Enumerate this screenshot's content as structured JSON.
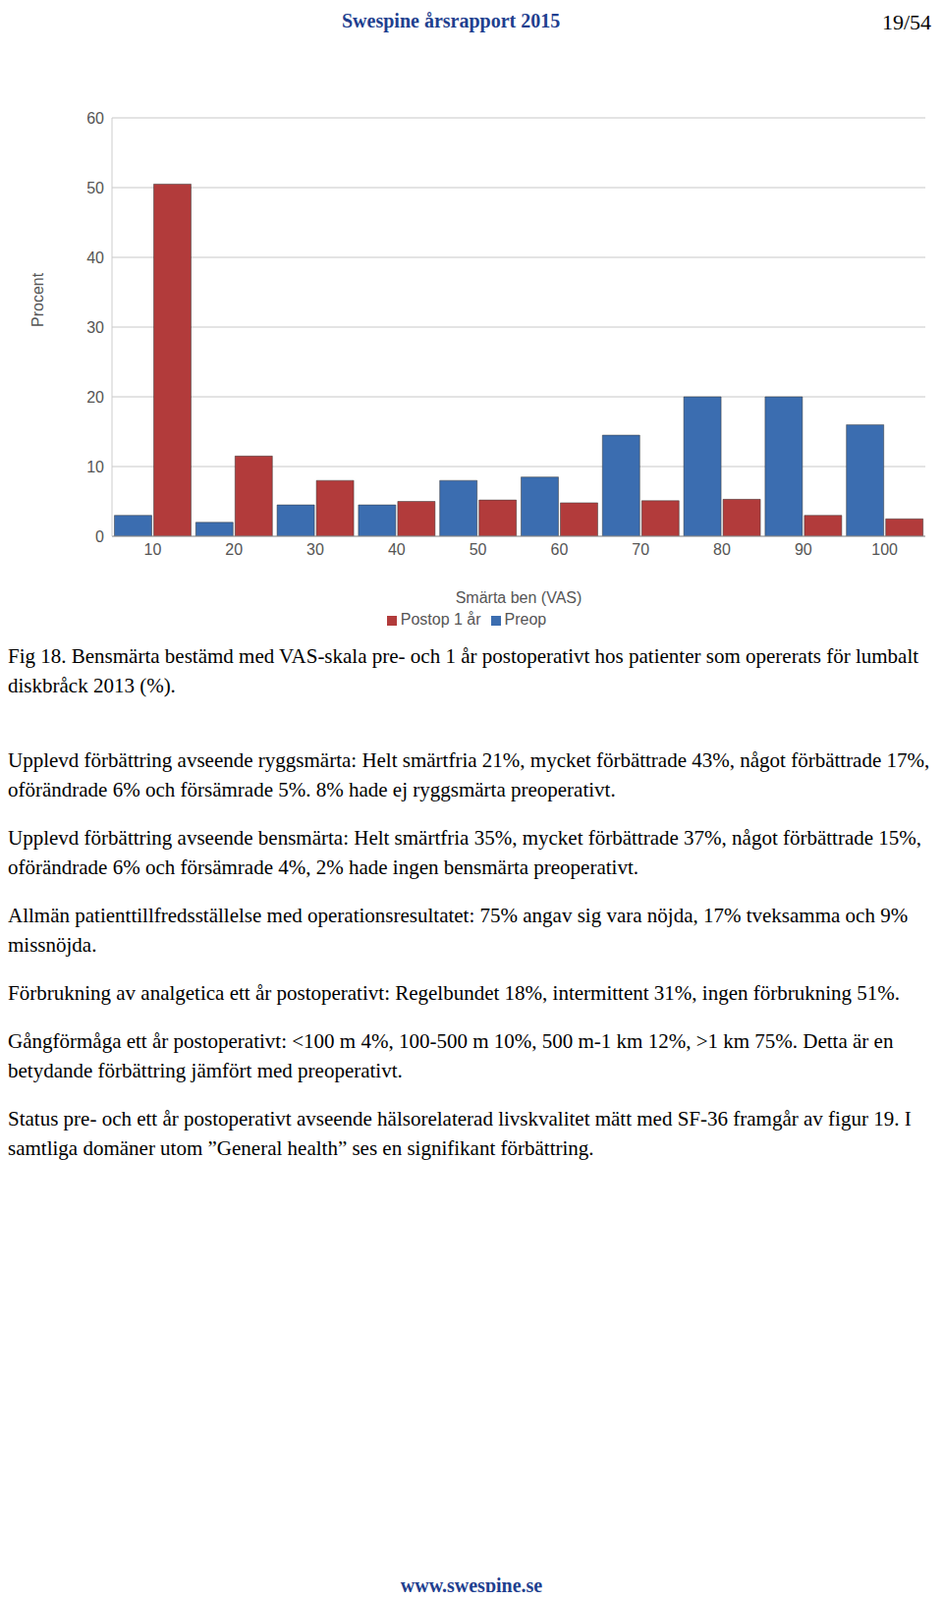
{
  "header": {
    "title": "Swespine årsrapport 2015",
    "page": "19/54"
  },
  "chart_data": {
    "type": "bar",
    "x_label": "Smärta ben (VAS)",
    "y_label": "Procent",
    "categories": [
      "10",
      "20",
      "30",
      "40",
      "50",
      "60",
      "70",
      "80",
      "90",
      "100"
    ],
    "series": [
      {
        "name": "Preop",
        "color": "#3b6db0",
        "values": [
          3,
          2,
          4.5,
          4.5,
          8,
          8.5,
          14.5,
          20,
          20,
          16
        ]
      },
      {
        "name": "Postop 1 år",
        "color": "#b23b3b",
        "values": [
          50.5,
          11.5,
          8,
          5,
          5.2,
          4.8,
          5.1,
          5.3,
          3,
          2.5
        ]
      }
    ],
    "ylim": [
      0,
      60
    ],
    "yticks": [
      0,
      10,
      20,
      30,
      40,
      50,
      60
    ],
    "grid": true,
    "legend": "bottom"
  },
  "caption": "Fig 18. Bensmärta bestämd med VAS-skala pre- och 1 år postoperativt hos patienter som opererats för lumbalt diskbråck 2013 (%).",
  "paragraphs": [
    "Upplevd förbättring avseende ryggsmärta: Helt smärtfria 21%, mycket förbättrade 43%, något förbättrade 17%, oförändrade 6% och försämrade 5%. 8% hade ej ryggsmärta preoperativt.",
    "Upplevd förbättring avseende bensmärta: Helt smärtfria 35%, mycket förbättrade 37%, något förbättrade 15%, oförändrade 6% och försämrade 4%, 2% hade ingen bensmärta preoperativt.",
    "Allmän patienttillfredsställelse med operationsresultatet: 75% angav sig vara nöjda, 17% tveksamma och 9% missnöjda.",
    "Förbrukning av analgetica ett år postoperativt: Regelbundet 18%, intermittent 31%, ingen förbrukning 51%.",
    "Gångförmåga ett år postoperativt: <100 m 4%, 100-500 m 10%, 500 m-1 km 12%, >1 km 75%. Detta är en betydande förbättring jämfört med preoperativt.",
    "Status pre- och ett år postoperativt avseende hälsorelaterad livskvalitet mätt med SF-36 framgår av figur 19. I samtliga domäner utom ”General health” ses en signifikant förbättring."
  ],
  "footer": "www.swespine.se"
}
